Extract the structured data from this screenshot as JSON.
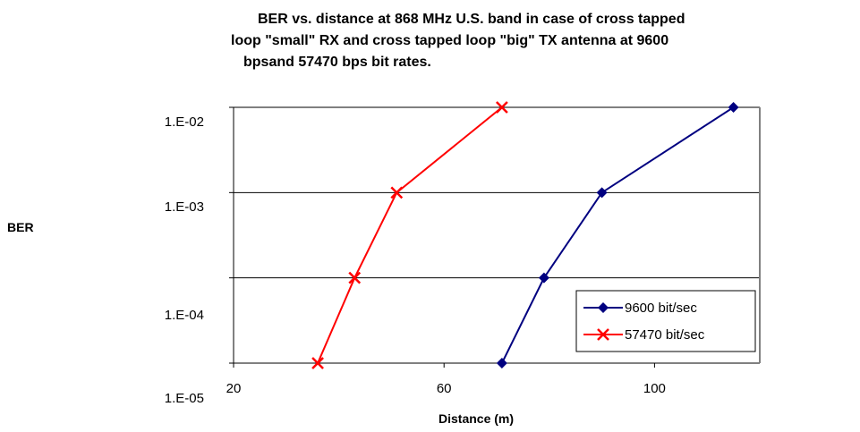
{
  "chart_data": {
    "type": "line",
    "title_lines": [
      "BER vs. distance at 868 MHz U.S. band in case of cross tapped",
      "loop \"small\" RX and cross tapped loop \"big\" TX antenna at 9600",
      "bpsand 57470 bps bit rates."
    ],
    "xlabel": "Distance (m)",
    "ylabel": "BER",
    "x_ticks": [
      "20",
      "60",
      "100"
    ],
    "x_tick_values": [
      20,
      60,
      100
    ],
    "y_ticks": [
      "1.E-02",
      "1.E-03",
      "1.E-04",
      "1.E-05"
    ],
    "xlim": [
      20,
      120
    ],
    "y_scale": "log",
    "ylim": [
      1e-05,
      0.01
    ],
    "grid": "horizontal",
    "legend_position": "bottom-right",
    "series": [
      {
        "name": "9600 bit/sec",
        "color": "#000080",
        "marker": "diamond",
        "x": [
          71,
          79,
          90,
          115
        ],
        "y": [
          1e-05,
          0.0001,
          0.001,
          0.01
        ]
      },
      {
        "name": "57470 bit/sec",
        "color": "#ff0000",
        "marker": "x",
        "x": [
          36,
          43,
          51,
          71
        ],
        "y": [
          1e-05,
          0.0001,
          0.001,
          0.01
        ]
      }
    ]
  }
}
